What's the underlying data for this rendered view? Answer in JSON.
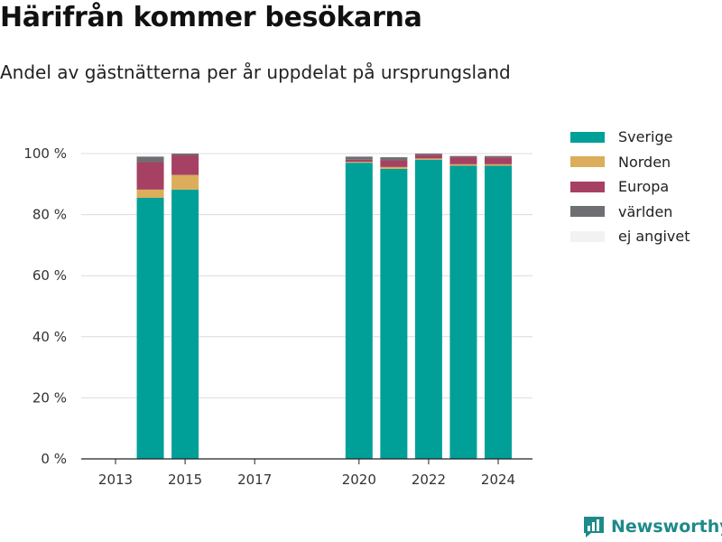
{
  "title": "Härifrån kommer besökarna",
  "subtitle": "Andel av gästnätterna per år uppdelat på ursprungsland",
  "brand": {
    "name": "Newsworthy",
    "color": "#1e8a89",
    "icon": "bar-chart-badge-icon"
  },
  "chart_data": {
    "type": "bar",
    "stacked": true,
    "x": [
      2013,
      2014,
      2015,
      2016,
      2017,
      2018,
      2019,
      2020,
      2021,
      2022,
      2023,
      2024
    ],
    "x_ticks": [
      2013,
      2015,
      2017,
      2020,
      2022,
      2024
    ],
    "y_ticks": [
      0,
      20,
      40,
      60,
      80,
      100
    ],
    "y_tick_suffix": " %",
    "ylim": [
      0,
      100
    ],
    "grid": true,
    "legend_position": "top-right",
    "series": [
      {
        "name": "Sverige",
        "color": "#00a098",
        "values": [
          null,
          85.5,
          88.2,
          null,
          null,
          null,
          null,
          97.0,
          95.0,
          98.0,
          96.0,
          96.0
        ]
      },
      {
        "name": "Norden",
        "color": "#dcad5a",
        "values": [
          null,
          2.7,
          4.8,
          null,
          null,
          null,
          null,
          0.3,
          0.6,
          0.4,
          0.5,
          0.5
        ]
      },
      {
        "name": "Europa",
        "color": "#a64163",
        "values": [
          null,
          9.0,
          6.4,
          null,
          null,
          null,
          null,
          0.7,
          2.2,
          1.2,
          2.3,
          2.2
        ]
      },
      {
        "name": "världen",
        "color": "#6e6e73",
        "values": [
          null,
          1.8,
          0.6,
          null,
          null,
          null,
          null,
          1.0,
          1.0,
          0.4,
          0.4,
          0.5
        ]
      },
      {
        "name": "ej angivet",
        "color": "#f2f2f2",
        "values": [
          null,
          0,
          0,
          null,
          null,
          null,
          null,
          0,
          0,
          0,
          0,
          0
        ]
      }
    ]
  }
}
